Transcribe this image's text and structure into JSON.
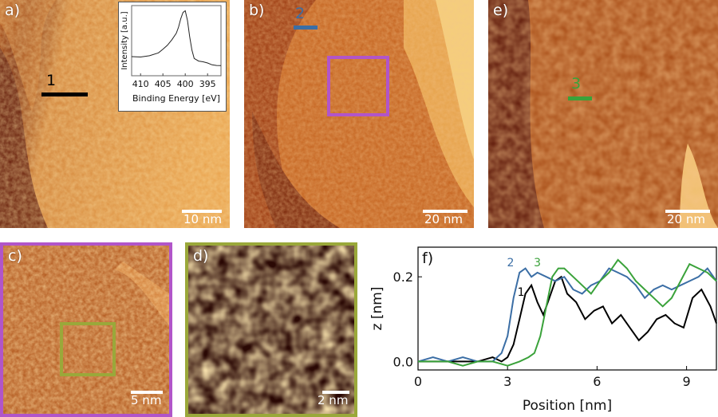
{
  "colors": {
    "stm_light": "#f3c86a",
    "stm_mid": "#c86a1e",
    "stm_dark": "#6e1e08",
    "profile_1": "#000000",
    "profile_2": "#3b6ea5",
    "profile_3": "#3aa23a",
    "roi_c": "#b155c9",
    "roi_d": "#9aa83a"
  },
  "panels": {
    "a": {
      "label": "a)",
      "scalebar": "10 nm",
      "profile_label": "1"
    },
    "b": {
      "label": "b)",
      "scalebar": "20 nm",
      "profile_label": "2"
    },
    "e": {
      "label": "e)",
      "scalebar": "20 nm",
      "profile_label": "3"
    },
    "c": {
      "label": "c)",
      "scalebar": "5 nm"
    },
    "d": {
      "label": "d)",
      "scalebar": "2 nm"
    },
    "f": {
      "label": "f)"
    }
  },
  "chart_data": [
    {
      "type": "line",
      "panel": "a-inset",
      "xlabel": "Binding Energy [eV]",
      "ylabel": "Intensity [a.u.]",
      "xticks": [
        "410",
        "405",
        "400",
        "395"
      ],
      "xlim": [
        412,
        392
      ],
      "x": [
        412,
        410,
        408,
        406,
        405,
        404,
        403,
        402,
        401.5,
        401,
        400.5,
        400,
        399.5,
        399,
        398.5,
        398,
        397,
        396,
        395,
        394,
        393,
        392
      ],
      "y": [
        0.3,
        0.31,
        0.33,
        0.36,
        0.4,
        0.46,
        0.56,
        0.68,
        0.78,
        0.9,
        0.98,
        1.0,
        0.86,
        0.62,
        0.42,
        0.28,
        0.22,
        0.2,
        0.19,
        0.18,
        0.18,
        0.17
      ]
    },
    {
      "type": "line",
      "panel": "f",
      "xlabel": "Position [nm]",
      "ylabel": "z [nm]",
      "xlim": [
        0,
        10
      ],
      "ylim": [
        -0.02,
        0.27
      ],
      "xticks": [
        "0",
        "3",
        "6",
        "9"
      ],
      "yticks": [
        "0.0",
        "0.2"
      ],
      "series": [
        {
          "name": "1",
          "x": [
            0,
            0.5,
            1,
            1.5,
            2,
            2.5,
            2.8,
            3.0,
            3.2,
            3.4,
            3.6,
            3.8,
            4.0,
            4.2,
            4.4,
            4.6,
            4.8,
            5.0,
            5.3,
            5.6,
            5.9,
            6.2,
            6.5,
            6.8,
            7.1,
            7.4,
            7.7,
            8.0,
            8.3,
            8.6,
            8.9,
            9.2,
            9.5,
            9.8,
            10
          ],
          "y": [
            0.0,
            0.0,
            0.0,
            0.0,
            0.0,
            0.01,
            0.0,
            0.01,
            0.04,
            0.1,
            0.16,
            0.18,
            0.14,
            0.11,
            0.15,
            0.19,
            0.2,
            0.16,
            0.14,
            0.1,
            0.12,
            0.13,
            0.09,
            0.11,
            0.08,
            0.05,
            0.07,
            0.1,
            0.11,
            0.09,
            0.08,
            0.15,
            0.17,
            0.13,
            0.09
          ]
        },
        {
          "name": "2",
          "x": [
            0,
            0.5,
            1,
            1.5,
            2,
            2.5,
            2.8,
            3.0,
            3.2,
            3.4,
            3.6,
            3.8,
            4.0,
            4.3,
            4.6,
            4.9,
            5.2,
            5.5,
            5.8,
            6.1,
            6.4,
            6.7,
            7.0,
            7.3,
            7.6,
            7.9,
            8.2,
            8.5,
            8.8,
            9.1,
            9.4,
            9.7,
            10
          ],
          "y": [
            0.0,
            0.01,
            0.0,
            0.01,
            0.0,
            0.0,
            0.02,
            0.06,
            0.15,
            0.21,
            0.22,
            0.2,
            0.21,
            0.2,
            0.19,
            0.2,
            0.17,
            0.16,
            0.18,
            0.19,
            0.22,
            0.21,
            0.2,
            0.18,
            0.15,
            0.17,
            0.18,
            0.17,
            0.18,
            0.19,
            0.2,
            0.22,
            0.19
          ]
        },
        {
          "name": "3",
          "x": [
            0,
            0.5,
            1,
            1.5,
            2,
            2.5,
            3.0,
            3.4,
            3.7,
            3.9,
            4.1,
            4.3,
            4.5,
            4.7,
            4.9,
            5.2,
            5.5,
            5.8,
            6.1,
            6.4,
            6.7,
            7.0,
            7.3,
            7.6,
            7.9,
            8.2,
            8.5,
            8.8,
            9.1,
            9.4,
            9.7,
            10
          ],
          "y": [
            0.0,
            0.0,
            0.0,
            -0.01,
            0.0,
            0.0,
            -0.01,
            0.0,
            0.01,
            0.02,
            0.06,
            0.13,
            0.2,
            0.22,
            0.22,
            0.2,
            0.18,
            0.16,
            0.19,
            0.21,
            0.24,
            0.22,
            0.19,
            0.17,
            0.15,
            0.13,
            0.15,
            0.19,
            0.23,
            0.22,
            0.21,
            0.19
          ]
        }
      ]
    }
  ]
}
